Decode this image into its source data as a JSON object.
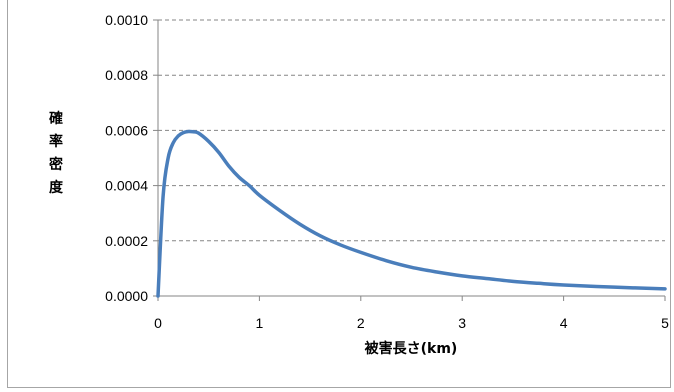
{
  "chart_data": {
    "type": "line",
    "title": "",
    "xlabel": "被害長さ(km)",
    "ylabel": "確率密度",
    "xlim": [
      0,
      5
    ],
    "ylim": [
      0,
      0.001
    ],
    "x_ticks": [
      "0",
      "1",
      "2",
      "3",
      "4",
      "5"
    ],
    "y_ticks": [
      "0.0000",
      "0.0002",
      "0.0004",
      "0.0006",
      "0.0008",
      "0.0010"
    ],
    "grid": "horizontal-dashed",
    "legend": "none",
    "line_color": "#4a7ebb",
    "series": [
      {
        "x": [
          0,
          0.05,
          0.1,
          0.15,
          0.2,
          0.25,
          0.3,
          0.35,
          0.4,
          0.5,
          0.6,
          0.7,
          0.8,
          0.9,
          1.0,
          1.2,
          1.4,
          1.6,
          1.8,
          2.0,
          2.25,
          2.5,
          2.75,
          3.0,
          3.25,
          3.5,
          3.75,
          4.0,
          4.5,
          5.0
        ],
        "y": [
          0,
          0.00036,
          0.0005,
          0.000555,
          0.00058,
          0.000592,
          0.000596,
          0.000595,
          0.00059,
          0.00056,
          0.00052,
          0.00047,
          0.00043,
          0.0004,
          0.000365,
          0.00031,
          0.00026,
          0.000218,
          0.000185,
          0.000158,
          0.000128,
          0.000104,
          8.7e-05,
          7.3e-05,
          6.3e-05,
          5.3e-05,
          4.6e-05,
          4e-05,
          3.2e-05,
          2.6e-05
        ]
      }
    ]
  }
}
